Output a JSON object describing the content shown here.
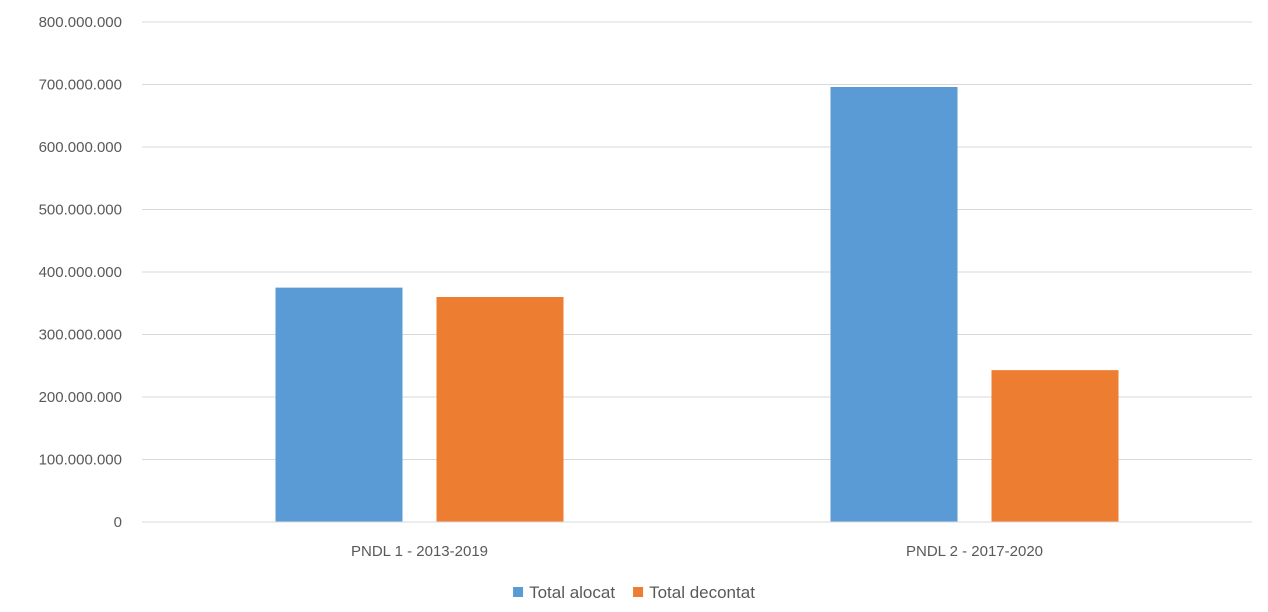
{
  "chart_data": {
    "type": "bar",
    "categories": [
      "PNDL 1 - 2013-2019",
      "PNDL 2 - 2017-2020"
    ],
    "series": [
      {
        "name": "Total alocat",
        "color": "#5b9bd5",
        "values": [
          375000000,
          696000000
        ]
      },
      {
        "name": "Total decontat",
        "color": "#ed7d31",
        "values": [
          360000000,
          243000000
        ]
      }
    ],
    "ylim": [
      0,
      800000000
    ],
    "yticks": [
      0,
      100000000,
      200000000,
      300000000,
      400000000,
      500000000,
      600000000,
      700000000,
      800000000
    ],
    "ytick_labels": [
      "0",
      "100.000.000",
      "200.000.000",
      "300.000.000",
      "400.000.000",
      "500.000.000",
      "600.000.000",
      "700.000.000",
      "800.000.000"
    ],
    "title": "",
    "xlabel": "",
    "ylabel": "",
    "grid": true,
    "legend_position": "bottom",
    "gridline_color": "#d9d9d9",
    "axis_color": "#d9d9d9",
    "text_color": "#595959"
  }
}
